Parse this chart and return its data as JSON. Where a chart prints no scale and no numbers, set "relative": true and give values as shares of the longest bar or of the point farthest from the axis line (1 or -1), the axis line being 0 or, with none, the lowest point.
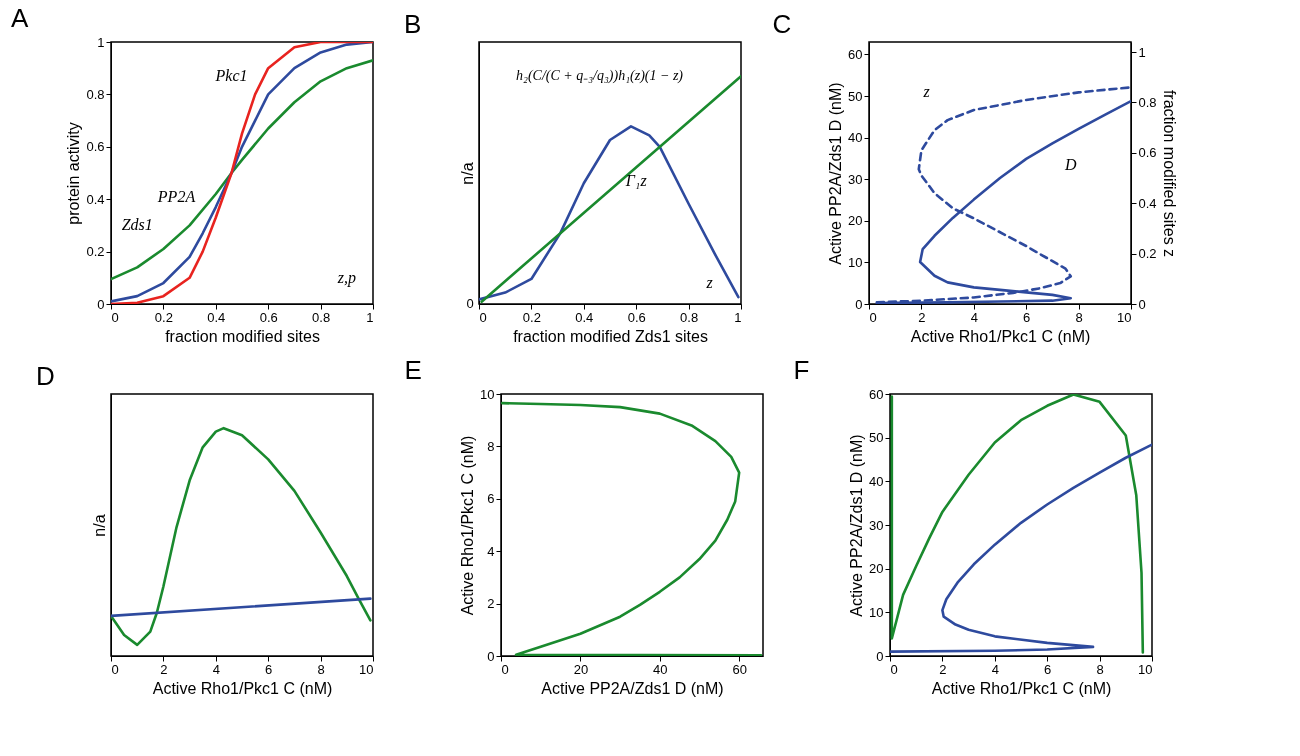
{
  "chart_data": [
    {
      "type": "line",
      "title": "A",
      "xlabel": "fraction modified sites",
      "ylabel": "protein activity",
      "xlim": [
        0,
        1
      ],
      "ylim": [
        0,
        1
      ],
      "xticks": [
        0,
        0.2,
        0.4,
        0.6,
        0.8,
        1
      ],
      "yticks": [
        0,
        0.2,
        0.4,
        0.6,
        0.8,
        1
      ],
      "grid": false,
      "series": [
        {
          "color": "#1a8a2e",
          "x": [
            0,
            0.1,
            0.2,
            0.3,
            0.4,
            0.46,
            0.5,
            0.6,
            0.7,
            0.8,
            0.9,
            1
          ],
          "values": [
            0.095,
            0.14,
            0.21,
            0.3,
            0.42,
            0.5,
            0.55,
            0.67,
            0.77,
            0.85,
            0.9,
            0.93
          ]
        },
        {
          "color": "#2e4a9e",
          "x": [
            0,
            0.1,
            0.2,
            0.3,
            0.35,
            0.4,
            0.46,
            0.5,
            0.55,
            0.6,
            0.7,
            0.8,
            0.9,
            1
          ],
          "values": [
            0.01,
            0.03,
            0.08,
            0.18,
            0.27,
            0.37,
            0.5,
            0.6,
            0.7,
            0.8,
            0.9,
            0.96,
            0.99,
            1
          ]
        },
        {
          "color": "#e8231f",
          "x": [
            0,
            0.1,
            0.2,
            0.3,
            0.35,
            0.4,
            0.46,
            0.5,
            0.55,
            0.6,
            0.7,
            0.8,
            0.9,
            1
          ],
          "values": [
            0,
            0.005,
            0.03,
            0.1,
            0.2,
            0.33,
            0.5,
            0.65,
            0.8,
            0.9,
            0.98,
            1,
            1,
            1
          ]
        }
      ],
      "annotations": [
        "Pkc1",
        "PP2A",
        "Zds1",
        "z,p"
      ]
    },
    {
      "type": "line",
      "title": "B",
      "xlabel": "fraction modified Zds1 sites",
      "ylabel": "n/a",
      "relative": true,
      "xlim": [
        0,
        1
      ],
      "xticks": [
        0,
        0.2,
        0.4,
        0.6,
        0.8,
        1
      ],
      "grid": false,
      "series": [
        {
          "color": "#2e4a9e",
          "x": [
            0,
            0.1,
            0.2,
            0.31,
            0.4,
            0.5,
            0.58,
            0.65,
            0.69,
            0.8,
            0.9,
            0.99
          ],
          "values": [
            0.02,
            0.05,
            0.11,
            0.31,
            0.53,
            0.72,
            0.78,
            0.74,
            0.69,
            0.44,
            0.22,
            0.03
          ]
        },
        {
          "color": "#1a8a2e",
          "x": [
            0.01,
            1
          ],
          "values": [
            0.01,
            1
          ]
        }
      ],
      "annotations": [
        "h₂(C/(C + q₋₃/q₃))h₁(z)(1 − z)",
        "Γ₁z",
        "z",
        "0"
      ]
    },
    {
      "type": "line",
      "title": "C",
      "xlabel": "Active Rho1/Pkc1 C (nM)",
      "ylabel": "Active PP2A/Zds1 D (nM)",
      "y2label": "fraction modified sites z",
      "xlim": [
        0,
        10
      ],
      "ylim": [
        0,
        63
      ],
      "y2lim": [
        0,
        1.04
      ],
      "xticks": [
        0,
        2,
        4,
        6,
        8,
        10
      ],
      "yticks": [
        0,
        10,
        20,
        30,
        40,
        50,
        60
      ],
      "y2ticks": [
        0,
        0.2,
        0.4,
        0.6,
        0.8,
        1
      ],
      "grid": false,
      "series": [
        {
          "color": "#2e4a9e",
          "line_style": "solid",
          "x": [
            0.3,
            1,
            3,
            5,
            7,
            7.7,
            7,
            6,
            5,
            4,
            3,
            2.5,
            1.95,
            2.05,
            2.5,
            3.2,
            4,
            5,
            6,
            7,
            8,
            9,
            10
          ],
          "values": [
            0.2,
            0.3,
            0.4,
            0.6,
            0.8,
            1.4,
            2.2,
            2.8,
            3.4,
            4,
            5.2,
            6.8,
            10.1,
            13.2,
            16.4,
            20.7,
            25.1,
            30.3,
            34.9,
            38.6,
            42.1,
            45.5,
            48.8
          ]
        },
        {
          "color": "#2e4a9e",
          "line_style": "dashed",
          "axis": "y2",
          "x": [
            0.3,
            2,
            4,
            5.5,
            6.5,
            7.3,
            7.7,
            7.5,
            6,
            4,
            3.2,
            2.5,
            2,
            1.9,
            2,
            2.5,
            3,
            4,
            6,
            8,
            10
          ],
          "values": [
            0.007,
            0.013,
            0.026,
            0.044,
            0.062,
            0.083,
            0.11,
            0.14,
            0.23,
            0.34,
            0.38,
            0.44,
            0.51,
            0.535,
            0.61,
            0.69,
            0.73,
            0.77,
            0.81,
            0.84,
            0.86
          ]
        }
      ],
      "annotations": [
        "z",
        "D"
      ]
    },
    {
      "type": "line",
      "title": "D",
      "xlabel": "Active Rho1/Pkc1 C (nM)",
      "ylabel": "n/a",
      "relative": true,
      "xlim": [
        0,
        10
      ],
      "xticks": [
        0,
        2,
        4,
        6,
        8,
        10
      ],
      "grid": false,
      "series": [
        {
          "color": "#1a8a2e",
          "x": [
            0,
            0.5,
            1,
            1.5,
            1.75,
            2,
            2.5,
            3,
            3.5,
            4,
            4.3,
            5,
            6,
            7,
            8,
            9,
            9.45,
            9.9
          ],
          "values": [
            0.176,
            0.092,
            0.049,
            0.107,
            0.19,
            0.305,
            0.565,
            0.77,
            0.916,
            0.985,
            1,
            0.969,
            0.863,
            0.725,
            0.542,
            0.351,
            0.252,
            0.156
          ]
        },
        {
          "color": "#2e4a9e",
          "x": [
            0,
            9.9
          ],
          "values": [
            0.176,
            0.252
          ]
        }
      ]
    },
    {
      "type": "line",
      "title": "E",
      "xlabel": "Active PP2A/Zds1 D (nM)",
      "ylabel": "Active Rho1/Pkc1 C (nM)",
      "xlim": [
        0,
        66
      ],
      "ylim": [
        0,
        10
      ],
      "xticks": [
        0,
        20,
        40,
        60
      ],
      "yticks": [
        0,
        2,
        4,
        6,
        8,
        10
      ],
      "grid": false,
      "series": [
        {
          "color": "#1a8a2e",
          "x": [
            0.3,
            10,
            20,
            30,
            40,
            48,
            54,
            58,
            60,
            59,
            57,
            54,
            50,
            45,
            40,
            35,
            30,
            20,
            10,
            3.8,
            65.5
          ],
          "values": [
            9.65,
            9.62,
            9.58,
            9.5,
            9.25,
            8.8,
            8.2,
            7.6,
            7.0,
            5.9,
            5.2,
            4.4,
            3.7,
            3.0,
            2.45,
            1.95,
            1.5,
            0.85,
            0.35,
            0.05,
            0.03
          ]
        }
      ]
    },
    {
      "type": "line",
      "title": "F",
      "xlabel": "Active Rho1/Pkc1 C (nM)",
      "ylabel": "Active PP2A/Zds1 D (nM)",
      "xlim": [
        0,
        10
      ],
      "ylim": [
        0,
        60
      ],
      "xticks": [
        0,
        2,
        4,
        6,
        8,
        10
      ],
      "yticks": [
        0,
        10,
        20,
        30,
        40,
        50,
        60
      ],
      "grid": false,
      "series": [
        {
          "color": "#1a8a2e",
          "x": [
            0.07,
            0.07,
            0.5,
            1,
            1.5,
            2,
            3,
            4,
            5,
            6,
            7,
            8,
            9,
            9.4,
            9.6,
            9.65
          ],
          "values": [
            59.4,
            4,
            14,
            20.6,
            27,
            33,
            41.5,
            48.9,
            54,
            57.3,
            59.9,
            58.2,
            50.5,
            36.8,
            19,
            0.8
          ]
        },
        {
          "color": "#2e4a9e",
          "x": [
            0,
            4,
            6,
            7.75,
            6,
            4,
            3,
            2.5,
            2.05,
            2,
            2.15,
            2.6,
            3.2,
            4,
            5,
            6,
            7,
            8,
            9,
            10
          ],
          "values": [
            1,
            1.2,
            1.5,
            2.1,
            3,
            4.5,
            6,
            7.2,
            9,
            10.5,
            13,
            17,
            21,
            25.5,
            30.5,
            34.7,
            38.5,
            42,
            45.4,
            48.4
          ]
        }
      ]
    }
  ]
}
